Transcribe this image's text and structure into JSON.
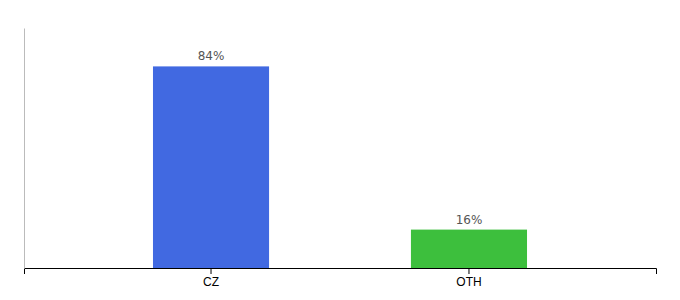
{
  "chart_data": {
    "type": "bar",
    "categories": [
      "CZ",
      "OTH"
    ],
    "values": [
      84,
      16
    ],
    "value_labels": [
      "84%",
      "16%"
    ],
    "data_labels": true,
    "colors": [
      "#4169e1",
      "#3dbf3d"
    ],
    "ylim": [
      0,
      100
    ],
    "tick_labels": "x"
  }
}
